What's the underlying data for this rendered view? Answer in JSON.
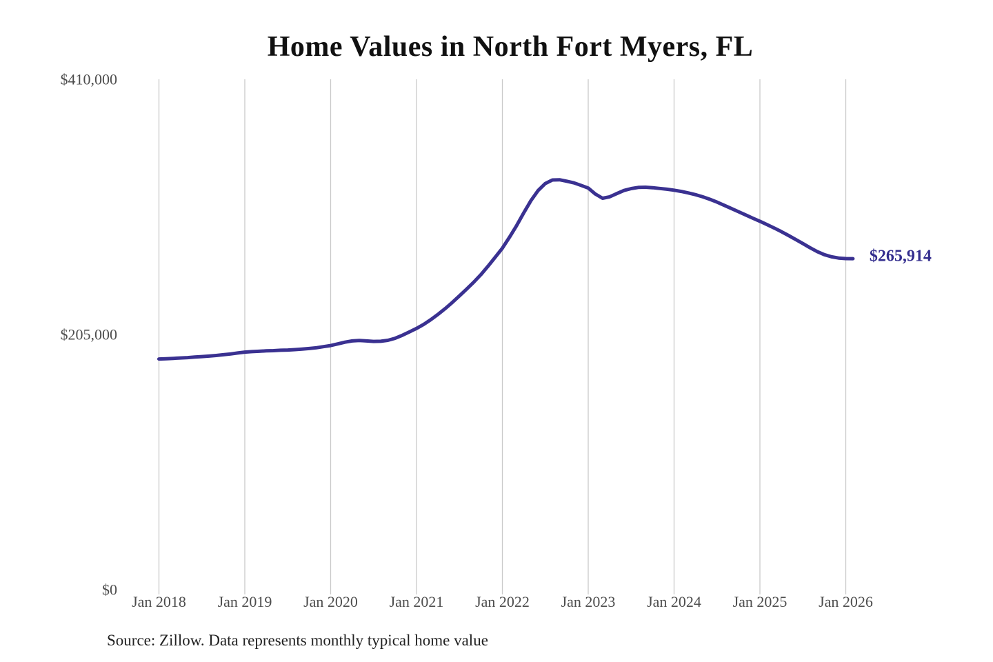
{
  "title": "Home Values in North Fort Myers, FL",
  "source_note": "Source: Zillow. Data represents monthly typical home value",
  "end_label": "$265,914",
  "colors": {
    "line": "#3a3191",
    "end_label": "#332d8e",
    "grid": "#c9c9c9",
    "tick_text": "#4d4d4d",
    "title_text": "#111111",
    "source_text": "#222222",
    "background": "#ffffff"
  },
  "chart_data": {
    "type": "line",
    "title": "Home Values in North Fort Myers, FL",
    "xlabel": "",
    "ylabel": "",
    "grid": "vertical-only",
    "legend": "none",
    "x_tick_labels": [
      "Jan 2018",
      "Jan 2019",
      "Jan 2020",
      "Jan 2021",
      "Jan 2022",
      "Jan 2023",
      "Jan 2024",
      "Jan 2025",
      "Jan 2026"
    ],
    "y_tick_labels": [
      "$0",
      "$205,000",
      "$410,000"
    ],
    "y_tick_values": [
      0,
      205000,
      410000
    ],
    "ylim": [
      0,
      410000
    ],
    "start_month": "Jan 2018",
    "frequency": "monthly",
    "end_label": "$265,914",
    "latest_value": 265914,
    "series": [
      {
        "name": "Monthly typical home value",
        "color": "#3a3191",
        "values": [
          185300,
          185500,
          185800,
          186100,
          186400,
          186800,
          187200,
          187600,
          188100,
          188700,
          189300,
          190100,
          190800,
          191200,
          191500,
          191800,
          192000,
          192300,
          192500,
          192800,
          193200,
          193700,
          194300,
          195200,
          196100,
          197400,
          198800,
          199800,
          200100,
          199800,
          199400,
          199500,
          200300,
          201900,
          204300,
          207000,
          209800,
          213100,
          216900,
          221100,
          225700,
          230700,
          236000,
          241400,
          247000,
          253100,
          259900,
          267000,
          274300,
          283200,
          292600,
          302800,
          312600,
          320700,
          326300,
          329100,
          329300,
          328100,
          326800,
          324800,
          322600,
          317800,
          314400,
          315600,
          318200,
          320700,
          322200,
          323100,
          323300,
          322900,
          322300,
          321700,
          320900,
          319900,
          318700,
          317300,
          315600,
          313600,
          311300,
          308800,
          306200,
          303600,
          301000,
          298400,
          295900,
          293200,
          290500,
          287600,
          284500,
          281300,
          278000,
          274700,
          271600,
          269100,
          267400,
          266400,
          265950,
          265914
        ]
      }
    ]
  }
}
